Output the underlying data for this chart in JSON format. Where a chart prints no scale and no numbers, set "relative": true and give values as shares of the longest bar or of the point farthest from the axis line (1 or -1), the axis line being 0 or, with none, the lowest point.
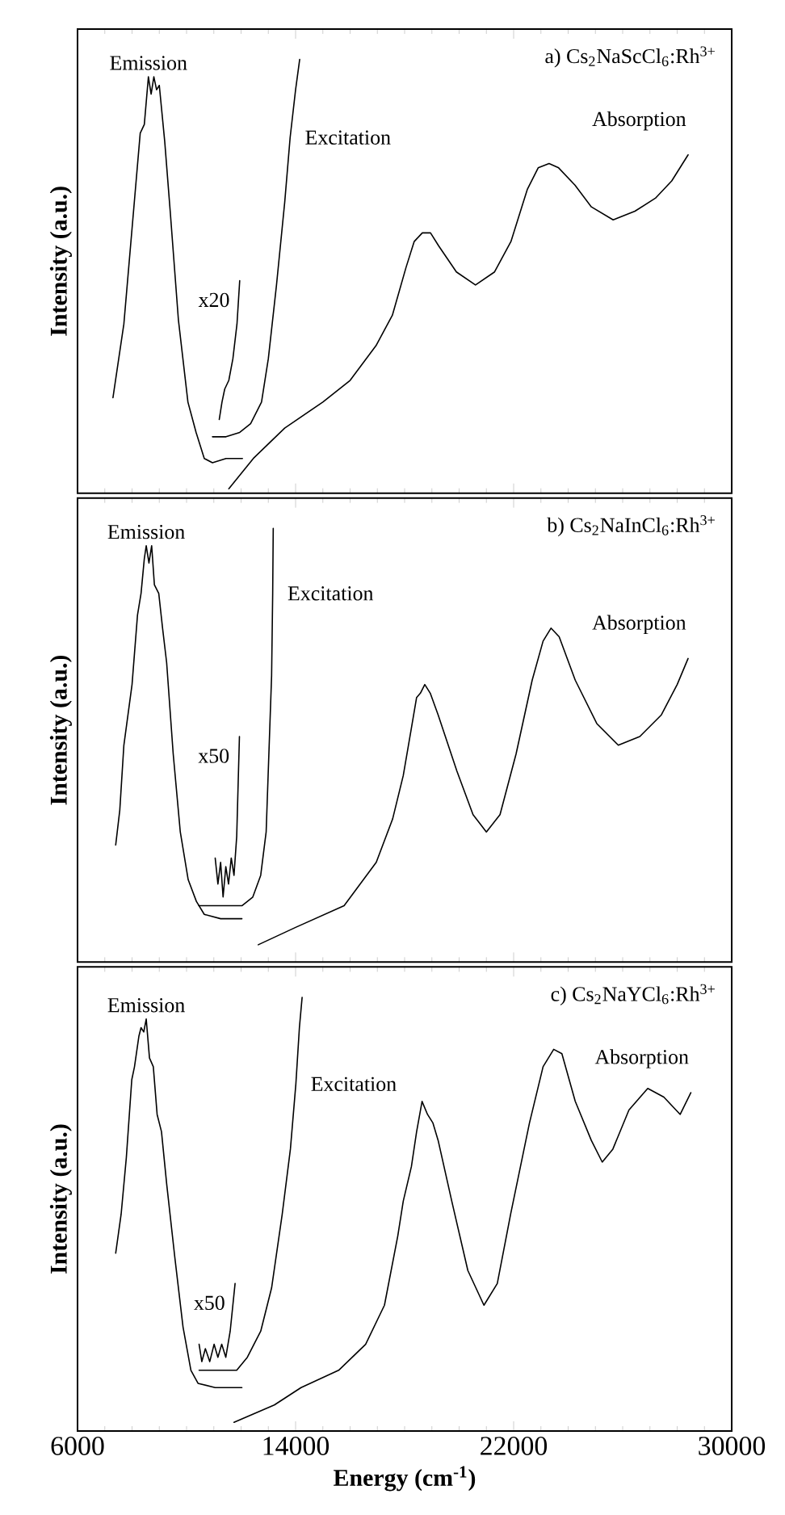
{
  "chart_data": [
    {
      "type": "line",
      "title": "a) Cs$_{2}$NaScCl$_{6}$:Rh$^{3+}$",
      "ylabel": "Intensity (a.u.)",
      "relative": true,
      "xlim": [
        6000,
        30000
      ],
      "xticks": [
        6000,
        14000,
        22000,
        30000
      ],
      "tick_labels": false,
      "series": [
        {
          "name": "Emission",
          "color": "#000000",
          "x": [
            7300,
            7700,
            8000,
            8300,
            8450,
            8600,
            8700,
            8800,
            8900,
            9000,
            9200,
            9400,
            9700,
            10050,
            10350,
            10650,
            10950,
            11450,
            12050
          ],
          "values": [
            0.22,
            0.39,
            0.61,
            0.83,
            0.85,
            0.96,
            0.92,
            0.96,
            0.93,
            0.94,
            0.81,
            0.65,
            0.4,
            0.21,
            0.14,
            0.08,
            0.07,
            0.08,
            0.08
          ]
        },
        {
          "name": "Excitation",
          "color": "#000000",
          "x": [
            10950,
            11450,
            11950,
            12350,
            12750,
            13000,
            13300,
            13600,
            13800,
            14000,
            14150
          ],
          "values": [
            0.13,
            0.13,
            0.14,
            0.16,
            0.21,
            0.31,
            0.48,
            0.67,
            0.82,
            0.93,
            1.0
          ]
        },
        {
          "name": "x20",
          "color": "#000000",
          "x": [
            11200,
            11300,
            11400,
            11550,
            11700,
            11850,
            11950
          ],
          "values": [
            0.17,
            0.21,
            0.24,
            0.26,
            0.31,
            0.39,
            0.49
          ]
        },
        {
          "name": "Absorption",
          "color": "#000000",
          "x": [
            11550,
            12450,
            13600,
            15000,
            16000,
            16950,
            17550,
            18050,
            18350,
            18650,
            18950,
            19250,
            19900,
            20600,
            21300,
            21900,
            22500,
            22900,
            23300,
            23650,
            24250,
            24850,
            25650,
            26450,
            27200,
            27800,
            28400
          ],
          "values": [
            0.01,
            0.08,
            0.15,
            0.21,
            0.26,
            0.34,
            0.41,
            0.52,
            0.58,
            0.6,
            0.6,
            0.57,
            0.51,
            0.48,
            0.51,
            0.58,
            0.7,
            0.75,
            0.76,
            0.75,
            0.71,
            0.66,
            0.63,
            0.65,
            0.68,
            0.72,
            0.78
          ]
        }
      ]
    },
    {
      "type": "line",
      "title": "b) Cs$_{2}$NaInCl$_{6}$:Rh$^{3+}$",
      "ylabel": "Intensity (a.u.)",
      "relative": true,
      "xlim": [
        6000,
        30000
      ],
      "xticks": [
        6000,
        14000,
        22000,
        30000
      ],
      "tick_labels": false,
      "series": [
        {
          "name": "Emission",
          "color": "#000000",
          "x": [
            7400,
            7550,
            7700,
            8000,
            8200,
            8330,
            8450,
            8520,
            8620,
            8720,
            8820,
            8980,
            9120,
            9270,
            9510,
            9770,
            10060,
            10360,
            10650,
            11250,
            12030
          ],
          "values": [
            0.27,
            0.35,
            0.5,
            0.64,
            0.8,
            0.85,
            0.93,
            0.96,
            0.92,
            0.96,
            0.87,
            0.85,
            0.77,
            0.69,
            0.48,
            0.3,
            0.19,
            0.14,
            0.11,
            0.1,
            0.1
          ]
        },
        {
          "name": "Excitation",
          "color": "#000000",
          "x": [
            10450,
            11250,
            12030,
            12430,
            12720,
            12920,
            13020,
            13120,
            13160,
            13180
          ],
          "values": [
            0.13,
            0.13,
            0.13,
            0.15,
            0.2,
            0.3,
            0.48,
            0.66,
            0.85,
            1.0
          ]
        },
        {
          "name": "x50",
          "color": "#000000",
          "x": [
            11050,
            11150,
            11250,
            11340,
            11440,
            11540,
            11640,
            11740,
            11840,
            11940
          ],
          "values": [
            0.24,
            0.18,
            0.23,
            0.15,
            0.22,
            0.18,
            0.24,
            0.2,
            0.29,
            0.52
          ]
        },
        {
          "name": "Absorption",
          "color": "#000000",
          "x": [
            12630,
            14000,
            15780,
            16960,
            17560,
            17950,
            18250,
            18440,
            18580,
            18740,
            18940,
            19230,
            19920,
            20510,
            21000,
            21500,
            22090,
            22680,
            23080,
            23370,
            23670,
            24260,
            25050,
            25840,
            26630,
            27420,
            28000,
            28400
          ],
          "values": [
            0.04,
            0.08,
            0.13,
            0.23,
            0.33,
            0.43,
            0.54,
            0.61,
            0.62,
            0.64,
            0.62,
            0.57,
            0.44,
            0.34,
            0.3,
            0.34,
            0.48,
            0.65,
            0.74,
            0.77,
            0.75,
            0.65,
            0.55,
            0.5,
            0.52,
            0.57,
            0.64,
            0.7
          ]
        }
      ]
    },
    {
      "type": "line",
      "title": "c) Cs$_{2}$NaYCl$_{6}$:Rh$^{3+}$",
      "ylabel": "Intensity (a.u.)",
      "xlabel": "Energy (cm$^{-1}$)",
      "relative": true,
      "xlim": [
        6000,
        30000
      ],
      "xticks": [
        6000,
        14000,
        22000,
        30000
      ],
      "tick_labels": "x",
      "series": [
        {
          "name": "Emission",
          "color": "#000000",
          "x": [
            7400,
            7600,
            7790,
            7990,
            8090,
            8250,
            8330,
            8430,
            8520,
            8640,
            8780,
            8920,
            9080,
            9270,
            9570,
            9870,
            10160,
            10420,
            11050,
            12030
          ],
          "values": [
            0.41,
            0.5,
            0.63,
            0.81,
            0.84,
            0.91,
            0.93,
            0.92,
            0.95,
            0.86,
            0.84,
            0.73,
            0.69,
            0.57,
            0.4,
            0.24,
            0.14,
            0.11,
            0.1,
            0.1
          ]
        },
        {
          "name": "Excitation",
          "color": "#000000",
          "x": [
            10460,
            11840,
            12230,
            12720,
            13120,
            13510,
            13810,
            14010,
            14140,
            14240
          ],
          "values": [
            0.14,
            0.14,
            0.17,
            0.23,
            0.33,
            0.5,
            0.65,
            0.8,
            0.93,
            1.0
          ]
        },
        {
          "name": "x50",
          "color": "#000000",
          "x": [
            10460,
            10560,
            10690,
            10850,
            11010,
            11150,
            11290,
            11440,
            11600,
            11780
          ],
          "values": [
            0.2,
            0.16,
            0.19,
            0.16,
            0.2,
            0.17,
            0.2,
            0.17,
            0.23,
            0.34
          ]
        },
        {
          "name": "Absorption",
          "color": "#000000",
          "x": [
            11740,
            13220,
            14200,
            15580,
            16570,
            17260,
            17750,
            17950,
            18250,
            18440,
            18640,
            18840,
            19040,
            19230,
            19730,
            20320,
            20910,
            21400,
            21890,
            22580,
            23080,
            23470,
            23770,
            24260,
            24850,
            25250,
            25640,
            26230,
            26920,
            27510,
            28110,
            28500
          ],
          "values": [
            0.02,
            0.06,
            0.1,
            0.14,
            0.2,
            0.29,
            0.45,
            0.53,
            0.61,
            0.69,
            0.76,
            0.73,
            0.71,
            0.67,
            0.53,
            0.37,
            0.29,
            0.34,
            0.5,
            0.71,
            0.84,
            0.88,
            0.87,
            0.76,
            0.67,
            0.62,
            0.65,
            0.74,
            0.79,
            0.77,
            0.73,
            0.78
          ]
        }
      ]
    }
  ]
}
